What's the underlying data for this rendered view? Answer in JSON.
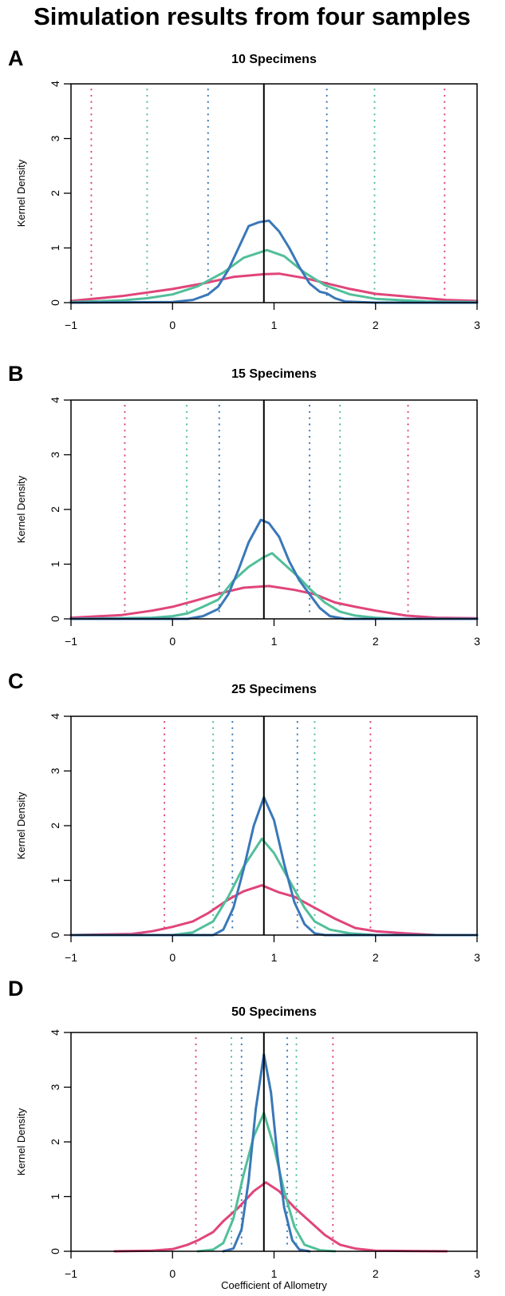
{
  "figure_title": "Simulation results from four samples",
  "colors": {
    "pink": "#e0457b",
    "green": "#52bf9a",
    "blue": "#3a78b8",
    "reference": "#000000"
  },
  "chart_data": [
    {
      "type": "line",
      "panel": "A",
      "title": "10 Specimens",
      "xlabel": "",
      "ylabel": "Kernel Density",
      "xlim": [
        -1,
        3
      ],
      "ylim": [
        0,
        4
      ],
      "xticks": [
        "-1",
        "0",
        "1",
        "2",
        "3"
      ],
      "yticks": [
        "0",
        "1",
        "2",
        "3",
        "4"
      ],
      "reference_line": 0.9,
      "intervals": {
        "pink": [
          -0.8,
          2.68
        ],
        "green": [
          -0.25,
          1.99
        ],
        "blue": [
          0.35,
          1.52
        ]
      },
      "series": [
        {
          "color": "pink",
          "points": [
            [
              -1,
              0.03
            ],
            [
              -0.5,
              0.12
            ],
            [
              0,
              0.25
            ],
            [
              0.3,
              0.35
            ],
            [
              0.6,
              0.47
            ],
            [
              0.9,
              0.52
            ],
            [
              1.05,
              0.53
            ],
            [
              1.3,
              0.45
            ],
            [
              1.5,
              0.36
            ],
            [
              1.75,
              0.25
            ],
            [
              2,
              0.16
            ],
            [
              2.5,
              0.08
            ],
            [
              2.7,
              0.05
            ],
            [
              3,
              0.03
            ]
          ]
        },
        {
          "color": "green",
          "points": [
            [
              -1,
              0.01
            ],
            [
              -0.5,
              0.04
            ],
            [
              -0.25,
              0.08
            ],
            [
              0,
              0.15
            ],
            [
              0.25,
              0.3
            ],
            [
              0.5,
              0.55
            ],
            [
              0.7,
              0.82
            ],
            [
              0.93,
              0.96
            ],
            [
              1.1,
              0.85
            ],
            [
              1.3,
              0.55
            ],
            [
              1.5,
              0.32
            ],
            [
              1.75,
              0.15
            ],
            [
              2,
              0.07
            ],
            [
              2.5,
              0.02
            ],
            [
              3,
              0.01
            ]
          ]
        },
        {
          "color": "blue",
          "points": [
            [
              -1,
              0
            ],
            [
              0,
              0.01
            ],
            [
              0.2,
              0.05
            ],
            [
              0.35,
              0.15
            ],
            [
              0.45,
              0.3
            ],
            [
              0.55,
              0.6
            ],
            [
              0.65,
              1.0
            ],
            [
              0.75,
              1.4
            ],
            [
              0.85,
              1.47
            ],
            [
              0.95,
              1.5
            ],
            [
              1.05,
              1.3
            ],
            [
              1.15,
              1.0
            ],
            [
              1.25,
              0.65
            ],
            [
              1.35,
              0.35
            ],
            [
              1.45,
              0.2
            ],
            [
              1.52,
              0.17
            ],
            [
              1.6,
              0.08
            ],
            [
              1.7,
              0.02
            ],
            [
              2,
              0
            ],
            [
              3,
              0
            ]
          ]
        }
      ]
    },
    {
      "type": "line",
      "panel": "B",
      "title": "15 Specimens",
      "xlabel": "",
      "ylabel": "Kernel Density",
      "xlim": [
        -1,
        3
      ],
      "ylim": [
        0,
        4
      ],
      "xticks": [
        "-1",
        "0",
        "1",
        "2",
        "3"
      ],
      "yticks": [
        "0",
        "1",
        "2",
        "3",
        "4"
      ],
      "reference_line": 0.9,
      "intervals": {
        "pink": [
          -0.47,
          2.32
        ],
        "green": [
          0.14,
          1.65
        ],
        "blue": [
          0.46,
          1.35
        ]
      },
      "series": [
        {
          "color": "pink",
          "points": [
            [
              -1,
              0.02
            ],
            [
              -0.5,
              0.07
            ],
            [
              -0.2,
              0.15
            ],
            [
              0,
              0.22
            ],
            [
              0.2,
              0.32
            ],
            [
              0.5,
              0.48
            ],
            [
              0.7,
              0.57
            ],
            [
              0.95,
              0.6
            ],
            [
              1.2,
              0.53
            ],
            [
              1.4,
              0.45
            ],
            [
              1.6,
              0.3
            ],
            [
              1.8,
              0.22
            ],
            [
              2,
              0.15
            ],
            [
              2.3,
              0.06
            ],
            [
              2.6,
              0.02
            ],
            [
              3,
              0.01
            ]
          ]
        },
        {
          "color": "green",
          "points": [
            [
              -1,
              0
            ],
            [
              -0.2,
              0.02
            ],
            [
              0,
              0.05
            ],
            [
              0.15,
              0.1
            ],
            [
              0.3,
              0.22
            ],
            [
              0.45,
              0.35
            ],
            [
              0.6,
              0.7
            ],
            [
              0.75,
              0.95
            ],
            [
              0.9,
              1.13
            ],
            [
              0.98,
              1.2
            ],
            [
              1.1,
              1.0
            ],
            [
              1.25,
              0.75
            ],
            [
              1.35,
              0.55
            ],
            [
              1.5,
              0.3
            ],
            [
              1.65,
              0.13
            ],
            [
              1.8,
              0.06
            ],
            [
              2,
              0.02
            ],
            [
              2.2,
              0
            ],
            [
              3,
              0
            ]
          ]
        },
        {
          "color": "blue",
          "points": [
            [
              -1,
              0
            ],
            [
              0.15,
              0
            ],
            [
              0.3,
              0.05
            ],
            [
              0.45,
              0.18
            ],
            [
              0.55,
              0.45
            ],
            [
              0.65,
              0.9
            ],
            [
              0.75,
              1.4
            ],
            [
              0.87,
              1.81
            ],
            [
              0.95,
              1.75
            ],
            [
              1.05,
              1.5
            ],
            [
              1.15,
              1.05
            ],
            [
              1.25,
              0.7
            ],
            [
              1.35,
              0.45
            ],
            [
              1.45,
              0.2
            ],
            [
              1.55,
              0.05
            ],
            [
              1.7,
              0
            ],
            [
              3,
              0
            ]
          ]
        }
      ]
    },
    {
      "type": "line",
      "panel": "C",
      "title": "25 Specimens",
      "xlabel": "",
      "ylabel": "Kernel Density",
      "xlim": [
        -1,
        3
      ],
      "ylim": [
        0,
        4
      ],
      "xticks": [
        "-1",
        "0",
        "1",
        "2",
        "3"
      ],
      "yticks": [
        "0",
        "1",
        "2",
        "3",
        "4"
      ],
      "reference_line": 0.9,
      "intervals": {
        "pink": [
          -0.08,
          1.95
        ],
        "green": [
          0.4,
          1.4
        ],
        "blue": [
          0.59,
          1.23
        ]
      },
      "series": [
        {
          "color": "pink",
          "points": [
            [
              -1,
              0
            ],
            [
              -0.4,
              0.02
            ],
            [
              -0.2,
              0.07
            ],
            [
              0,
              0.15
            ],
            [
              0.2,
              0.25
            ],
            [
              0.35,
              0.4
            ],
            [
              0.55,
              0.65
            ],
            [
              0.7,
              0.8
            ],
            [
              0.88,
              0.91
            ],
            [
              1.05,
              0.78
            ],
            [
              1.2,
              0.7
            ],
            [
              1.4,
              0.5
            ],
            [
              1.6,
              0.3
            ],
            [
              1.8,
              0.13
            ],
            [
              2,
              0.07
            ],
            [
              2.3,
              0.03
            ],
            [
              2.6,
              0
            ],
            [
              3,
              0
            ]
          ]
        },
        {
          "color": "green",
          "points": [
            [
              -1,
              0
            ],
            [
              0,
              0
            ],
            [
              0.2,
              0.05
            ],
            [
              0.4,
              0.25
            ],
            [
              0.55,
              0.7
            ],
            [
              0.7,
              1.25
            ],
            [
              0.88,
              1.76
            ],
            [
              1.0,
              1.5
            ],
            [
              1.15,
              1.0
            ],
            [
              1.3,
              0.5
            ],
            [
              1.4,
              0.25
            ],
            [
              1.55,
              0.1
            ],
            [
              1.75,
              0.03
            ],
            [
              2,
              0
            ],
            [
              3,
              0
            ]
          ]
        },
        {
          "color": "blue",
          "points": [
            [
              -1,
              0
            ],
            [
              0.4,
              0
            ],
            [
              0.5,
              0.1
            ],
            [
              0.6,
              0.5
            ],
            [
              0.7,
              1.2
            ],
            [
              0.8,
              2.0
            ],
            [
              0.9,
              2.52
            ],
            [
              1.0,
              2.1
            ],
            [
              1.1,
              1.3
            ],
            [
              1.2,
              0.6
            ],
            [
              1.3,
              0.2
            ],
            [
              1.4,
              0.03
            ],
            [
              1.5,
              0
            ],
            [
              3,
              0
            ]
          ]
        }
      ]
    },
    {
      "type": "line",
      "panel": "D",
      "title": "50 Specimens",
      "xlabel": "Coefficient of Allometry",
      "ylabel": "Kernel Density",
      "xlim": [
        -1,
        3
      ],
      "ylim": [
        0,
        4
      ],
      "xticks": [
        "-1",
        "0",
        "1",
        "2",
        "3"
      ],
      "yticks": [
        "0",
        "1",
        "2",
        "3",
        "4"
      ],
      "reference_line": 0.9,
      "intervals": {
        "pink": [
          0.23,
          1.58
        ],
        "green": [
          0.58,
          1.22
        ],
        "blue": [
          0.68,
          1.13
        ]
      },
      "series": [
        {
          "color": "pink",
          "points": [
            [
              -0.57,
              0
            ],
            [
              -0.2,
              0.01
            ],
            [
              0,
              0.04
            ],
            [
              0.15,
              0.12
            ],
            [
              0.25,
              0.2
            ],
            [
              0.4,
              0.35
            ],
            [
              0.5,
              0.55
            ],
            [
              0.65,
              0.8
            ],
            [
              0.8,
              1.1
            ],
            [
              0.92,
              1.26
            ],
            [
              1.05,
              1.1
            ],
            [
              1.2,
              0.8
            ],
            [
              1.35,
              0.55
            ],
            [
              1.5,
              0.3
            ],
            [
              1.65,
              0.12
            ],
            [
              1.8,
              0.05
            ],
            [
              2,
              0.01
            ],
            [
              2.7,
              0
            ]
          ]
        },
        {
          "color": "green",
          "points": [
            [
              0.25,
              0
            ],
            [
              0.4,
              0.03
            ],
            [
              0.5,
              0.15
            ],
            [
              0.6,
              0.6
            ],
            [
              0.7,
              1.4
            ],
            [
              0.8,
              2.1
            ],
            [
              0.9,
              2.53
            ],
            [
              1.0,
              1.9
            ],
            [
              1.1,
              1.1
            ],
            [
              1.2,
              0.45
            ],
            [
              1.3,
              0.12
            ],
            [
              1.45,
              0.02
            ],
            [
              1.6,
              0
            ]
          ]
        },
        {
          "color": "blue",
          "points": [
            [
              0.5,
              0
            ],
            [
              0.6,
              0.05
            ],
            [
              0.68,
              0.4
            ],
            [
              0.75,
              1.3
            ],
            [
              0.82,
              2.6
            ],
            [
              0.9,
              3.6
            ],
            [
              0.97,
              2.9
            ],
            [
              1.03,
              1.8
            ],
            [
              1.1,
              0.8
            ],
            [
              1.18,
              0.2
            ],
            [
              1.25,
              0.03
            ],
            [
              1.35,
              0
            ]
          ]
        }
      ]
    }
  ]
}
